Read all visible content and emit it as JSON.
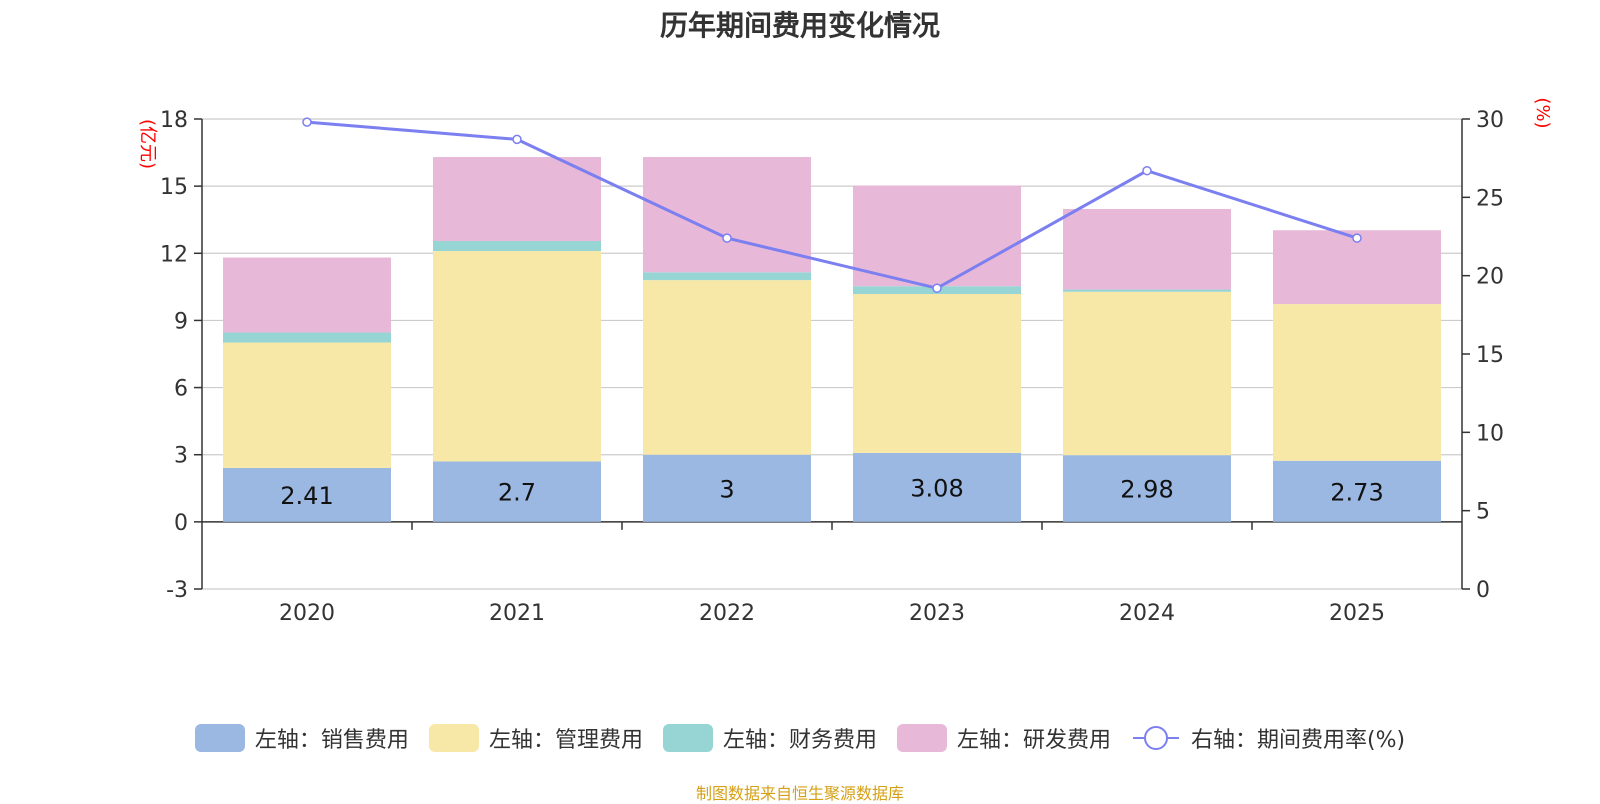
{
  "chart_data": {
    "type": "bar",
    "title": "历年期间费用变化情况",
    "categories": [
      "2020",
      "2021",
      "2022",
      "2023",
      "2024",
      "2025"
    ],
    "series": [
      {
        "name": "左轴：销售费用",
        "axis": "left",
        "color": "#9bb8e2",
        "values": [
          2.41,
          2.7,
          3,
          3.08,
          2.98,
          2.73
        ]
      },
      {
        "name": "左轴：管理费用",
        "axis": "left",
        "color": "#f8e8a8",
        "values": [
          5.6,
          9.4,
          7.8,
          7.1,
          7.3,
          7.0
        ]
      },
      {
        "name": "左轴：财务费用",
        "axis": "left",
        "color": "#97d5d4",
        "values": [
          0.45,
          0.45,
          0.35,
          0.35,
          0.1,
          0.0
        ]
      },
      {
        "name": "左轴：研发费用",
        "axis": "left",
        "color": "#e8b8d8",
        "values": [
          3.35,
          3.75,
          5.15,
          4.5,
          3.6,
          3.3
        ]
      },
      {
        "name": "右轴：期间费用率(%)",
        "axis": "right",
        "type": "line",
        "color": "#7b7ff0",
        "values": [
          29.8,
          28.7,
          22.4,
          19.2,
          26.7,
          22.4
        ]
      }
    ],
    "bar_labels": [
      "2.41",
      "2.7",
      "3",
      "3.08",
      "2.98",
      "2.73"
    ],
    "left_axis": {
      "label": "(亿元)",
      "ylim": [
        -3,
        18
      ],
      "ticks": [
        "-3",
        "0",
        "3",
        "6",
        "9",
        "12",
        "15",
        "18"
      ]
    },
    "right_axis": {
      "label": "(%)",
      "ylim": [
        0,
        30
      ],
      "ticks": [
        "0",
        "5",
        "10",
        "15",
        "20",
        "25",
        "30"
      ]
    },
    "grid": true,
    "legend_position": "bottom"
  },
  "source": "制图数据来自恒生聚源数据库"
}
